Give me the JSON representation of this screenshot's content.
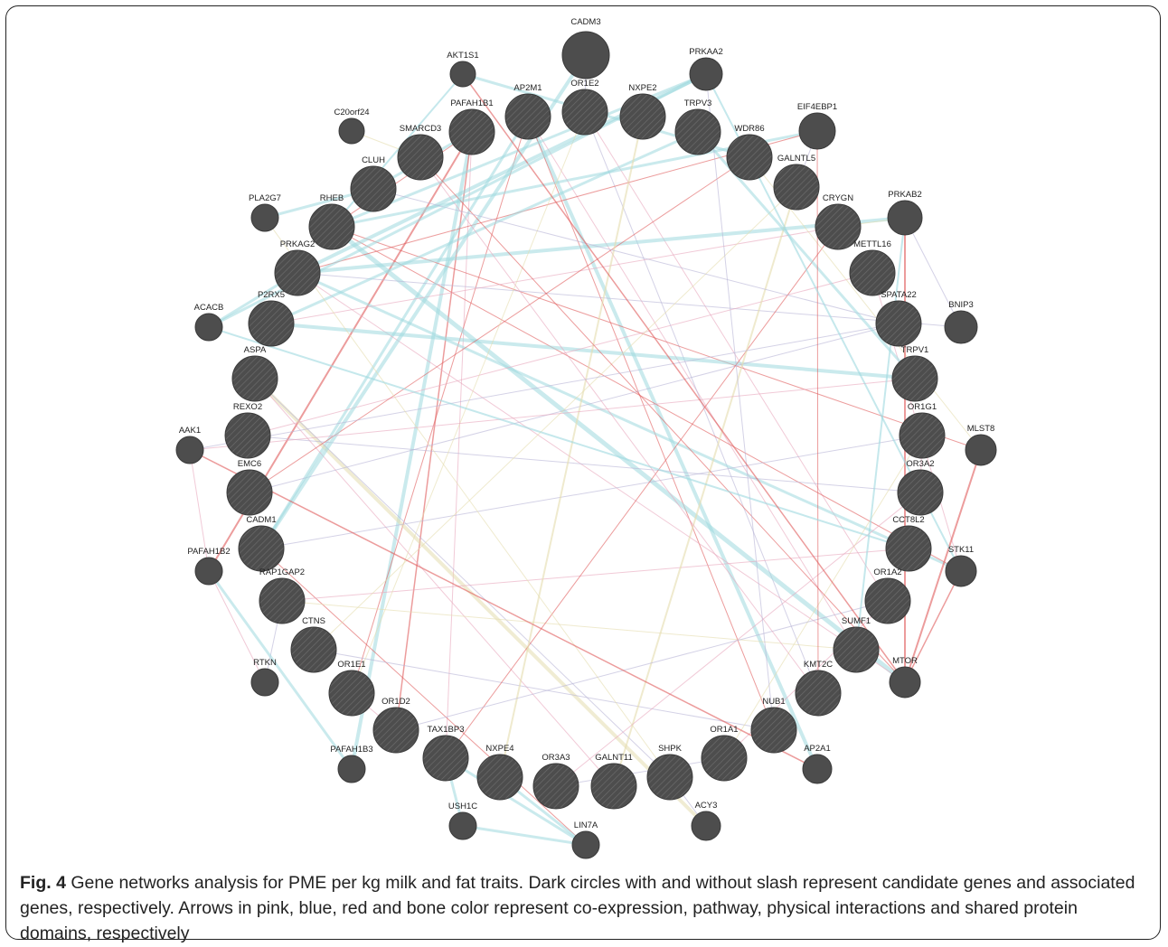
{
  "colors": {
    "node_fill": "#4d4d4d",
    "node_stroke": "#3a3a3a",
    "hatch": "#6b6b6b",
    "coexpression": "#e8a6bd",
    "pathway": "#9ed8df",
    "physical": "#e05a5a",
    "shared_domains": "#e4dcae",
    "other": "#b8b4d6"
  },
  "caption": {
    "label": "Fig. 4",
    "text": " Gene networks analysis for PME per kg milk and fat traits. Dark circles with and without slash represent candidate genes and associated genes, respectively. Arrows in pink, blue, red and bone color represent co-expression, pathway, physical interactions and shared protein domains, respectively"
  },
  "nodes": [
    {
      "id": "CADM3",
      "kind": "associated"
    },
    {
      "id": "AKT1S1",
      "kind": "associated"
    },
    {
      "id": "PRKAA2",
      "kind": "associated"
    },
    {
      "id": "C20orf24",
      "kind": "associated"
    },
    {
      "id": "EIF4EBP1",
      "kind": "associated"
    },
    {
      "id": "PLA2G7",
      "kind": "associated"
    },
    {
      "id": "PRKAB2",
      "kind": "associated"
    },
    {
      "id": "ACACB",
      "kind": "associated"
    },
    {
      "id": "BNIP3",
      "kind": "associated"
    },
    {
      "id": "AAK1",
      "kind": "associated"
    },
    {
      "id": "MLST8",
      "kind": "associated"
    },
    {
      "id": "PAFAH1B2",
      "kind": "associated"
    },
    {
      "id": "STK11",
      "kind": "associated"
    },
    {
      "id": "RTKN",
      "kind": "associated"
    },
    {
      "id": "MTOR",
      "kind": "associated"
    },
    {
      "id": "PAFAH1B3",
      "kind": "associated"
    },
    {
      "id": "AP2A1",
      "kind": "associated"
    },
    {
      "id": "USH1C",
      "kind": "associated"
    },
    {
      "id": "ACY3",
      "kind": "associated"
    },
    {
      "id": "LIN7A",
      "kind": "associated"
    },
    {
      "id": "AP2M1",
      "kind": "candidate"
    },
    {
      "id": "OR1E2",
      "kind": "candidate"
    },
    {
      "id": "NXPE2",
      "kind": "candidate"
    },
    {
      "id": "PAFAH1B1",
      "kind": "candidate"
    },
    {
      "id": "TRPV3",
      "kind": "candidate"
    },
    {
      "id": "SMARCD3",
      "kind": "candidate"
    },
    {
      "id": "WDR86",
      "kind": "candidate"
    },
    {
      "id": "CLUH",
      "kind": "candidate"
    },
    {
      "id": "GALNTL5",
      "kind": "candidate"
    },
    {
      "id": "RHEB",
      "kind": "candidate"
    },
    {
      "id": "CRYGN",
      "kind": "candidate"
    },
    {
      "id": "PRKAG2",
      "kind": "candidate"
    },
    {
      "id": "METTL16",
      "kind": "candidate"
    },
    {
      "id": "P2RX5",
      "kind": "candidate"
    },
    {
      "id": "SPATA22",
      "kind": "candidate"
    },
    {
      "id": "ASPA",
      "kind": "candidate"
    },
    {
      "id": "TRPV1",
      "kind": "candidate"
    },
    {
      "id": "REXO2",
      "kind": "candidate"
    },
    {
      "id": "OR1G1",
      "kind": "candidate"
    },
    {
      "id": "EMC6",
      "kind": "candidate"
    },
    {
      "id": "OR3A2",
      "kind": "candidate"
    },
    {
      "id": "CADM1",
      "kind": "candidate"
    },
    {
      "id": "CCT8L2",
      "kind": "candidate"
    },
    {
      "id": "RAP1GAP2",
      "kind": "candidate"
    },
    {
      "id": "OR1A2",
      "kind": "candidate"
    },
    {
      "id": "CTNS",
      "kind": "candidate"
    },
    {
      "id": "SUMF1",
      "kind": "candidate"
    },
    {
      "id": "OR1E1",
      "kind": "candidate"
    },
    {
      "id": "KMT2C",
      "kind": "candidate"
    },
    {
      "id": "OR1D2",
      "kind": "candidate"
    },
    {
      "id": "NUB1",
      "kind": "candidate"
    },
    {
      "id": "TAX1BP3",
      "kind": "candidate"
    },
    {
      "id": "OR1A1",
      "kind": "candidate"
    },
    {
      "id": "NXPE4",
      "kind": "candidate"
    },
    {
      "id": "SHPK",
      "kind": "candidate"
    },
    {
      "id": "OR3A3",
      "kind": "candidate"
    },
    {
      "id": "GALNT11",
      "kind": "candidate"
    }
  ],
  "edges": [
    {
      "s": "PAFAH1B1",
      "t": "PAFAH1B3",
      "type": "pathway",
      "w": 4
    },
    {
      "s": "PAFAH1B1",
      "t": "PAFAH1B2",
      "type": "physical",
      "w": 2
    },
    {
      "s": "PAFAH1B1",
      "t": "CLUH",
      "type": "pathway",
      "w": 3
    },
    {
      "s": "PAFAH1B1",
      "t": "RHEB",
      "type": "physical",
      "w": 1
    },
    {
      "s": "PAFAH1B1",
      "t": "OR1D2",
      "type": "physical",
      "w": 1.5
    },
    {
      "s": "PAFAH1B1",
      "t": "TAX1BP3",
      "type": "coexpression",
      "w": 1
    },
    {
      "s": "AP2M1",
      "t": "AP2A1",
      "type": "pathway",
      "w": 4
    },
    {
      "s": "AP2M1",
      "t": "NUB1",
      "type": "physical",
      "w": 1
    },
    {
      "s": "AP2M1",
      "t": "SUMF1",
      "type": "coexpression",
      "w": 1
    },
    {
      "s": "AP2M1",
      "t": "CADM1",
      "type": "pathway",
      "w": 3
    },
    {
      "s": "AP2M1",
      "t": "OR1E1",
      "type": "physical",
      "w": 1
    },
    {
      "s": "OR1E2",
      "t": "OR1A2",
      "type": "coexpression",
      "w": 1
    },
    {
      "s": "OR1E2",
      "t": "KMT2C",
      "type": "other",
      "w": 1
    },
    {
      "s": "RHEB",
      "t": "MTOR",
      "type": "pathway",
      "w": 5
    },
    {
      "s": "RHEB",
      "t": "STK11",
      "type": "physical",
      "w": 1
    },
    {
      "s": "RHEB",
      "t": "EIF4EBP1",
      "type": "pathway",
      "w": 3
    },
    {
      "s": "RHEB",
      "t": "PRKAA2",
      "type": "pathway",
      "w": 3
    },
    {
      "s": "RHEB",
      "t": "MLST8",
      "type": "physical",
      "w": 1
    },
    {
      "s": "RHEB",
      "t": "AKT1S1",
      "type": "pathway",
      "w": 2
    },
    {
      "s": "PRKAG2",
      "t": "PRKAA2",
      "type": "pathway",
      "w": 4
    },
    {
      "s": "PRKAG2",
      "t": "PRKAB2",
      "type": "pathway",
      "w": 4
    },
    {
      "s": "PRKAG2",
      "t": "STK11",
      "type": "pathway",
      "w": 3
    },
    {
      "s": "PRKAG2",
      "t": "ACACB",
      "type": "pathway",
      "w": 3
    },
    {
      "s": "PRKAG2",
      "t": "MTOR",
      "type": "coexpression",
      "w": 1
    },
    {
      "s": "PRKAG2",
      "t": "EIF4EBP1",
      "type": "physical",
      "w": 1
    },
    {
      "s": "PRKAG2",
      "t": "BNIP3",
      "type": "other",
      "w": 1
    },
    {
      "s": "P2RX5",
      "t": "TRPV1",
      "type": "pathway",
      "w": 4
    },
    {
      "s": "P2RX5",
      "t": "TRPV3",
      "type": "pathway",
      "w": 3
    },
    {
      "s": "P2RX5",
      "t": "CRYGN",
      "type": "coexpression",
      "w": 1
    },
    {
      "s": "ASPA",
      "t": "ACY3",
      "type": "shared_domains",
      "w": 4
    },
    {
      "s": "ASPA",
      "t": "SHPK",
      "type": "other",
      "w": 1
    },
    {
      "s": "ASPA",
      "t": "GALNT11",
      "type": "coexpression",
      "w": 1
    },
    {
      "s": "REXO2",
      "t": "OR3A2",
      "type": "other",
      "w": 1
    },
    {
      "s": "REXO2",
      "t": "METTL16",
      "type": "coexpression",
      "w": 1
    },
    {
      "s": "EMC6",
      "t": "SPATA22",
      "type": "other",
      "w": 1
    },
    {
      "s": "EMC6",
      "t": "WDR86",
      "type": "physical",
      "w": 1
    },
    {
      "s": "CADM1",
      "t": "CADM3",
      "type": "pathway",
      "w": 4
    },
    {
      "s": "CADM1",
      "t": "LIN7A",
      "type": "physical",
      "w": 1
    },
    {
      "s": "CADM1",
      "t": "OR1G1",
      "type": "other",
      "w": 1
    },
    {
      "s": "RAP1GAP2",
      "t": "RTKN",
      "type": "other",
      "w": 1
    },
    {
      "s": "RAP1GAP2",
      "t": "CCT8L2",
      "type": "coexpression",
      "w": 1
    },
    {
      "s": "RAP1GAP2",
      "t": "SUMF1",
      "type": "shared_domains",
      "w": 1
    },
    {
      "s": "CTNS",
      "t": "NUB1",
      "type": "other",
      "w": 1
    },
    {
      "s": "CTNS",
      "t": "GALNTL5",
      "type": "shared_domains",
      "w": 1
    },
    {
      "s": "TAX1BP3",
      "t": "LIN7A",
      "type": "pathway",
      "w": 3
    },
    {
      "s": "TAX1BP3",
      "t": "USH1C",
      "type": "pathway",
      "w": 3
    },
    {
      "s": "TAX1BP3",
      "t": "CRYGN",
      "type": "physical",
      "w": 1
    },
    {
      "s": "NXPE4",
      "t": "NXPE2",
      "type": "shared_domains",
      "w": 2
    },
    {
      "s": "NXPE4",
      "t": "LIN7A",
      "type": "pathway",
      "w": 3
    },
    {
      "s": "GALNT11",
      "t": "GALNTL5",
      "type": "shared_domains",
      "w": 2
    },
    {
      "s": "OR3A3",
      "t": "OR3A2",
      "type": "coexpression",
      "w": 1
    },
    {
      "s": "OR3A3",
      "t": "OR1A1",
      "type": "other",
      "w": 1
    },
    {
      "s": "OR1A1",
      "t": "OR1A2",
      "type": "coexpression",
      "w": 1
    },
    {
      "s": "OR1A1",
      "t": "OR1G1",
      "type": "shared_domains",
      "w": 1
    },
    {
      "s": "OR1D2",
      "t": "OR1E1",
      "type": "coexpression",
      "w": 1
    },
    {
      "s": "OR1D2",
      "t": "OR1A2",
      "type": "other",
      "w": 1
    },
    {
      "s": "OR1E1",
      "t": "OR1E2",
      "type": "shared_domains",
      "w": 1
    },
    {
      "s": "SMARCD3",
      "t": "MTOR",
      "type": "physical",
      "w": 1
    },
    {
      "s": "SMARCD3",
      "t": "KMT2C",
      "type": "coexpression",
      "w": 1
    },
    {
      "s": "SMARCD3",
      "t": "C20orf24",
      "type": "shared_domains",
      "w": 1
    },
    {
      "s": "CLUH",
      "t": "PLA2G7",
      "type": "pathway",
      "w": 3
    },
    {
      "s": "CLUH",
      "t": "SPATA22",
      "type": "other",
      "w": 1
    },
    {
      "s": "WDR86",
      "t": "MLST8",
      "type": "shared_domains",
      "w": 1
    },
    {
      "s": "WDR86",
      "t": "AKT1S1",
      "type": "pathway",
      "w": 3
    },
    {
      "s": "METTL16",
      "t": "STK11",
      "type": "coexpression",
      "w": 1
    },
    {
      "s": "SPATA22",
      "t": "AAK1",
      "type": "other",
      "w": 1
    },
    {
      "s": "TRPV1",
      "t": "TRPV3",
      "type": "pathway",
      "w": 3
    },
    {
      "s": "TRPV1",
      "t": "AAK1",
      "type": "coexpression",
      "w": 1
    },
    {
      "s": "SUMF1",
      "t": "PRKAB2",
      "type": "pathway",
      "w": 2
    },
    {
      "s": "KMT2C",
      "t": "EIF4EBP1",
      "type": "physical",
      "w": 1
    },
    {
      "s": "NUB1",
      "t": "PRKAA2",
      "type": "other",
      "w": 1
    },
    {
      "s": "SHPK",
      "t": "PLA2G7",
      "type": "shared_domains",
      "w": 1
    },
    {
      "s": "CCT8L2",
      "t": "ACACB",
      "type": "pathway",
      "w": 2
    },
    {
      "s": "MTOR",
      "t": "PRKAB2",
      "type": "physical",
      "w": 2
    },
    {
      "s": "MTOR",
      "t": "MLST8",
      "type": "physical",
      "w": 2
    },
    {
      "s": "MTOR",
      "t": "AKT1S1",
      "type": "physical",
      "w": 1.5
    },
    {
      "s": "PAFAH1B2",
      "t": "PAFAH1B3",
      "type": "pathway",
      "w": 3
    },
    {
      "s": "PAFAH1B2",
      "t": "RTKN",
      "type": "coexpression",
      "w": 1
    },
    {
      "s": "AAK1",
      "t": "AP2A1",
      "type": "physical",
      "w": 1.5
    },
    {
      "s": "AAK1",
      "t": "PAFAH1B2",
      "type": "coexpression",
      "w": 1
    },
    {
      "s": "USH1C",
      "t": "LIN7A",
      "type": "pathway",
      "w": 3
    },
    {
      "s": "ACY3",
      "t": "SHPK",
      "type": "other",
      "w": 1
    },
    {
      "s": "BNIP3",
      "t": "PRKAB2",
      "type": "other",
      "w": 1
    },
    {
      "s": "STK11",
      "t": "MTOR",
      "type": "physical",
      "w": 1.5
    },
    {
      "s": "STK11",
      "t": "PRKAA2",
      "type": "pathway",
      "w": 2
    },
    {
      "s": "CADM3",
      "t": "OR1E2",
      "type": "other",
      "w": 1
    },
    {
      "s": "OR3A2",
      "t": "OR1G1",
      "type": "coexpression",
      "w": 1
    },
    {
      "s": "CRYGN",
      "t": "PRKAB2",
      "type": "shared_domains",
      "w": 1
    },
    {
      "s": "GALNTL5",
      "t": "EIF4EBP1",
      "type": "other",
      "w": 1
    },
    {
      "s": "ACACB",
      "t": "PRKAA2",
      "type": "pathway",
      "w": 3
    }
  ]
}
